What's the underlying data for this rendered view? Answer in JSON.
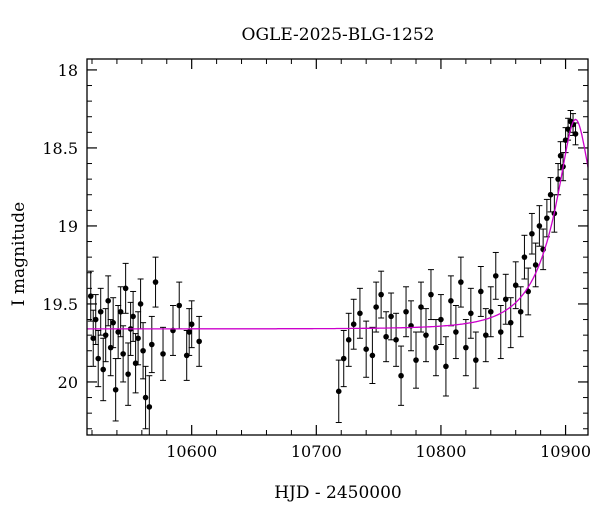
{
  "chart_data": {
    "type": "scatter",
    "title": "OGLE-2025-BLG-1252",
    "xlabel": "HJD - 2450000",
    "ylabel": "I magnitude",
    "xlim": [
      10516,
      10918
    ],
    "ylim": [
      20.34,
      17.93
    ],
    "y_inverted": true,
    "x_ticks": [
      10600,
      10700,
      10800,
      10900
    ],
    "y_ticks": [
      18,
      18.5,
      19,
      19.5,
      20
    ],
    "x_tick_labels": [
      "10600",
      "10700",
      "10800",
      "10900"
    ],
    "y_tick_labels": [
      "18",
      "18.5",
      "19",
      "19.5",
      "20"
    ],
    "grid": false,
    "legend": "none",
    "series": [
      {
        "kind": "points_with_errorbars",
        "color": "#000000",
        "points": [
          [
            10519,
            19.45,
            0.16
          ],
          [
            10521,
            19.72,
            0.18
          ],
          [
            10523,
            19.6,
            0.16
          ],
          [
            10525,
            19.85,
            0.18
          ],
          [
            10527,
            19.55,
            0.15
          ],
          [
            10529,
            19.92,
            0.2
          ],
          [
            10531,
            19.7,
            0.17
          ],
          [
            10533,
            19.48,
            0.16
          ],
          [
            10535,
            19.78,
            0.18
          ],
          [
            10537,
            19.62,
            0.16
          ],
          [
            10539,
            20.05,
            0.2
          ],
          [
            10541,
            19.68,
            0.17
          ],
          [
            10543,
            19.55,
            0.16
          ],
          [
            10545,
            19.82,
            0.18
          ],
          [
            10547,
            19.4,
            0.16
          ],
          [
            10549,
            19.95,
            0.2
          ],
          [
            10551,
            19.66,
            0.17
          ],
          [
            10553,
            19.58,
            0.16
          ],
          [
            10555,
            19.88,
            0.19
          ],
          [
            10557,
            19.72,
            0.17
          ],
          [
            10559,
            19.5,
            0.16
          ],
          [
            10561,
            19.8,
            0.18
          ],
          [
            10563,
            20.1,
            0.2
          ],
          [
            10566,
            20.16,
            0.2
          ],
          [
            10568,
            19.76,
            0.18
          ],
          [
            10571,
            19.36,
            0.16
          ],
          [
            10577,
            19.82,
            0.17
          ],
          [
            10585,
            19.67,
            0.16
          ],
          [
            10590,
            19.51,
            0.15
          ],
          [
            10596,
            19.83,
            0.16
          ],
          [
            10598,
            19.68,
            0.15
          ],
          [
            10600,
            19.63,
            0.15
          ],
          [
            10606,
            19.74,
            0.16
          ],
          [
            10718,
            20.06,
            0.2
          ],
          [
            10722,
            19.85,
            0.18
          ],
          [
            10726,
            19.73,
            0.17
          ],
          [
            10730,
            19.63,
            0.16
          ],
          [
            10735,
            19.56,
            0.16
          ],
          [
            10740,
            19.79,
            0.18
          ],
          [
            10745,
            19.83,
            0.18
          ],
          [
            10748,
            19.52,
            0.16
          ],
          [
            10752,
            19.44,
            0.15
          ],
          [
            10756,
            19.71,
            0.16
          ],
          [
            10760,
            19.58,
            0.15
          ],
          [
            10764,
            19.73,
            0.17
          ],
          [
            10768,
            19.96,
            0.19
          ],
          [
            10772,
            19.55,
            0.16
          ],
          [
            10776,
            19.64,
            0.16
          ],
          [
            10780,
            19.86,
            0.18
          ],
          [
            10784,
            19.52,
            0.16
          ],
          [
            10788,
            19.7,
            0.17
          ],
          [
            10792,
            19.44,
            0.16
          ],
          [
            10796,
            19.78,
            0.18
          ],
          [
            10800,
            19.6,
            0.16
          ],
          [
            10804,
            19.9,
            0.19
          ],
          [
            10808,
            19.48,
            0.16
          ],
          [
            10812,
            19.68,
            0.17
          ],
          [
            10816,
            19.36,
            0.16
          ],
          [
            10820,
            19.78,
            0.18
          ],
          [
            10824,
            19.56,
            0.16
          ],
          [
            10828,
            19.86,
            0.18
          ],
          [
            10832,
            19.42,
            0.16
          ],
          [
            10836,
            19.7,
            0.17
          ],
          [
            10840,
            19.55,
            0.16
          ],
          [
            10844,
            19.32,
            0.15
          ],
          [
            10848,
            19.68,
            0.17
          ],
          [
            10852,
            19.47,
            0.16
          ],
          [
            10856,
            19.62,
            0.16
          ],
          [
            10860,
            19.38,
            0.15
          ],
          [
            10864,
            19.55,
            0.16
          ],
          [
            10867,
            19.2,
            0.14
          ],
          [
            10870,
            19.42,
            0.15
          ],
          [
            10873,
            19.05,
            0.13
          ],
          [
            10876,
            19.25,
            0.14
          ],
          [
            10879,
            19.0,
            0.13
          ],
          [
            10882,
            19.15,
            0.13
          ],
          [
            10885,
            18.95,
            0.12
          ],
          [
            10888,
            18.8,
            0.11
          ],
          [
            10891,
            18.92,
            0.12
          ],
          [
            10894,
            18.7,
            0.1
          ],
          [
            10896,
            18.55,
            0.09
          ],
          [
            10898,
            18.62,
            0.09
          ],
          [
            10900,
            18.45,
            0.08
          ],
          [
            10902,
            18.38,
            0.07
          ],
          [
            10904,
            18.33,
            0.07
          ],
          [
            10906,
            18.35,
            0.07
          ],
          [
            10908,
            18.41,
            0.07
          ]
        ]
      },
      {
        "kind": "model_curve",
        "color": "#cc00cc",
        "baseline": 19.66,
        "t0": 10908,
        "tE": 36,
        "u0": 0.3,
        "x_range": [
          10516,
          10918
        ]
      }
    ]
  }
}
